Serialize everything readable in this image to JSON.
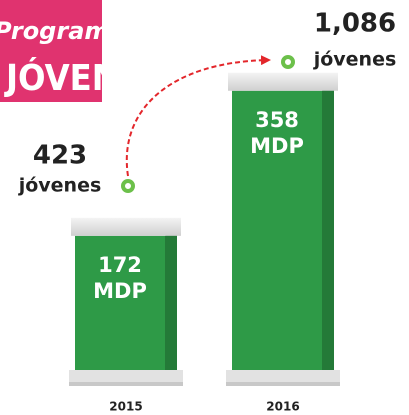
{
  "chart_data": {
    "type": "bar",
    "title": "Programa",
    "subtitle": "JÓVEN",
    "categories": [
      "2015",
      "2016"
    ],
    "series": [
      {
        "name": "MDP",
        "color": "#2e9a47",
        "values": [
          172,
          358
        ]
      }
    ],
    "beneficiaries": {
      "name": "jóvenes",
      "color": "#6cc04a",
      "values": [
        423,
        1086
      ],
      "value_labels": [
        "423",
        "1,086"
      ]
    },
    "arrow_color": "#e3262b",
    "tag_color": "#e0336f"
  }
}
